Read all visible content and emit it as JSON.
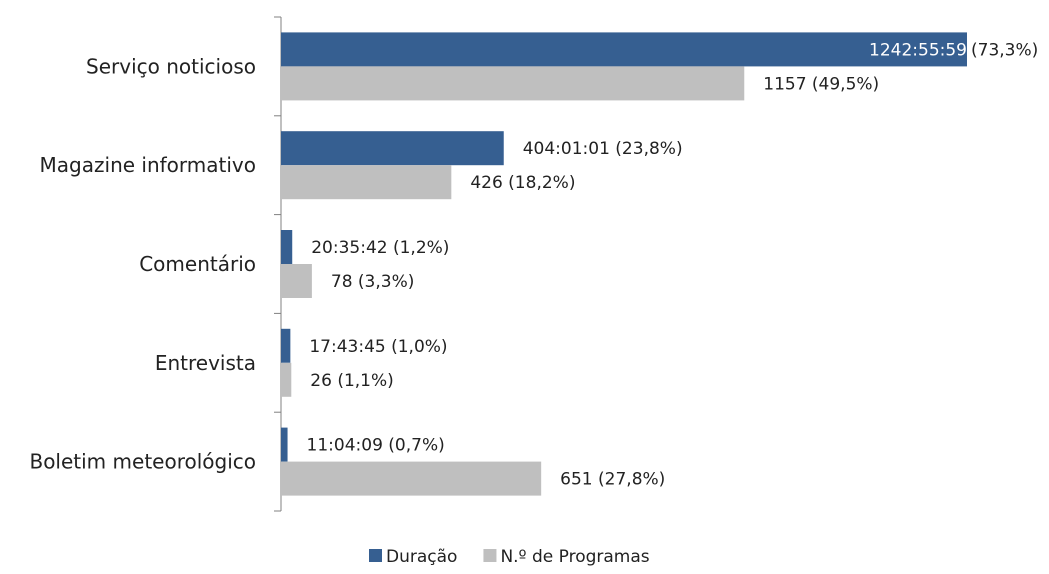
{
  "chart_data": {
    "type": "bar",
    "orientation": "horizontal",
    "categories": [
      "Serviço noticioso",
      "Magazine informativo",
      "Comentário",
      "Entrevista",
      "Boletim meteorológico"
    ],
    "series": [
      {
        "name": "Duração",
        "color": "#365f91",
        "values": [
          73.3,
          23.8,
          1.2,
          1.0,
          0.7
        ],
        "labels": [
          "1242:55:59",
          "404:01:01 (23,8%)",
          "20:35:42 (1,2%)",
          "17:43:45 (1,0%)",
          "11:04:09 (0,7%)"
        ],
        "label_suffixes": [
          "(73,3%)",
          "",
          "",
          "",
          ""
        ]
      },
      {
        "name": "N.º de Programas",
        "color": "#bfbfbf",
        "values": [
          49.5,
          18.2,
          3.3,
          1.1,
          27.8
        ],
        "labels": [
          "1157 (49,5%)",
          "426 (18,2%)",
          "78 (3,3%)",
          "26 (1,1%)",
          "651 (27,8%)"
        ]
      }
    ],
    "xlim": [
      0,
      73.3
    ],
    "grid": false,
    "legend": "bottom"
  }
}
